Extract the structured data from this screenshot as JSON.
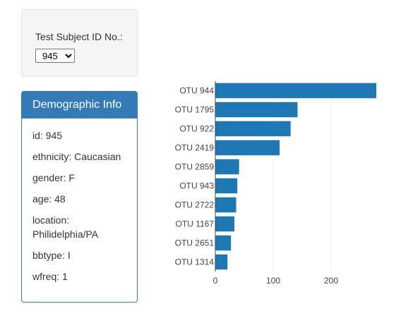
{
  "selector": {
    "label": "Test Subject ID No.:",
    "selected": "945"
  },
  "demographics": {
    "title": "Demographic Info",
    "lines": [
      "id: 945",
      "ethnicity: Caucasian",
      "gender: F",
      "age: 48",
      "location:",
      "Philidelphia/PA",
      "bbtype: I",
      "wfreq: 1"
    ]
  },
  "colors": {
    "bar": "#1f77b4",
    "panel_primary": "#337ab7"
  },
  "chart_data": {
    "type": "bar",
    "orientation": "horizontal",
    "categories": [
      "OTU 944",
      "OTU 1795",
      "OTU 922",
      "OTU 2419",
      "OTU 2859",
      "OTU 943",
      "OTU 2722",
      "OTU 1167",
      "OTU 2651",
      "OTU 1314"
    ],
    "values": [
      278,
      142,
      130,
      111,
      41,
      38,
      36,
      33,
      27,
      21
    ],
    "xlim": [
      0,
      278
    ],
    "xticks": [
      0,
      100,
      200
    ],
    "grid": true
  }
}
